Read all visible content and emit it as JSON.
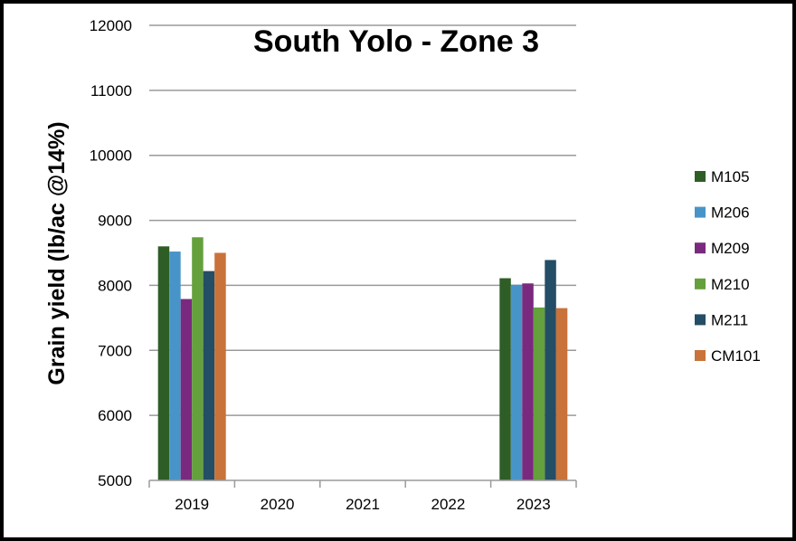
{
  "chart_data": {
    "type": "bar",
    "title": "South Yolo - Zone 3",
    "xlabel": "",
    "ylabel": "Grain yield (lb/ac @14%)",
    "categories": [
      "2019",
      "2020",
      "2021",
      "2022",
      "2023"
    ],
    "ylim": [
      5000,
      12000
    ],
    "yticks": [
      5000,
      6000,
      7000,
      8000,
      9000,
      10000,
      11000,
      12000
    ],
    "grid": true,
    "legend_position": "right",
    "series": [
      {
        "name": "M105",
        "color": "#2e5e26",
        "values": [
          8600,
          null,
          null,
          null,
          8110
        ]
      },
      {
        "name": "M206",
        "color": "#4795c8",
        "values": [
          8520,
          null,
          null,
          null,
          8010
        ]
      },
      {
        "name": "M209",
        "color": "#7a2a7e",
        "values": [
          7790,
          null,
          null,
          null,
          8030
        ]
      },
      {
        "name": "M210",
        "color": "#64a03c",
        "values": [
          8740,
          null,
          null,
          null,
          7660
        ]
      },
      {
        "name": "M211",
        "color": "#244d66",
        "values": [
          8220,
          null,
          null,
          null,
          8390
        ]
      },
      {
        "name": "CM101",
        "color": "#c97239",
        "values": [
          8500,
          null,
          null,
          null,
          7650
        ]
      }
    ]
  }
}
